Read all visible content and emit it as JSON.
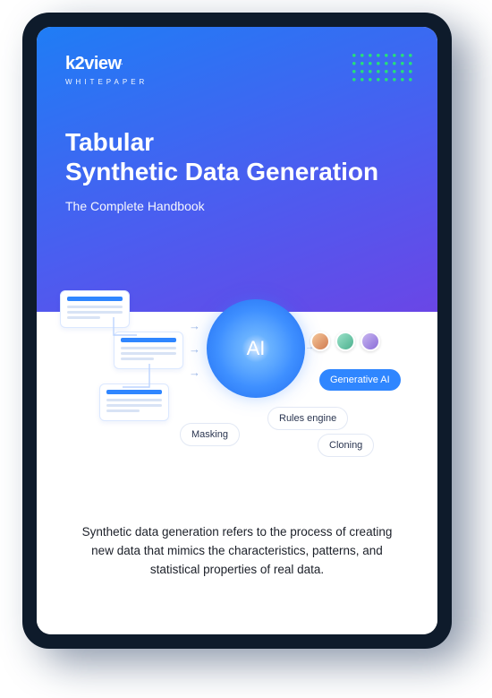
{
  "brand": {
    "logo_text": "k2view",
    "subline": "WHITEPAPER"
  },
  "dotgrid": {
    "rows": 4,
    "cols": 8,
    "color": "#26e07a",
    "dot_radius": 1.8,
    "spacing": 9
  },
  "title_line1": "Tabular",
  "title_line2": "Synthetic Data Generation",
  "subtitle": "The Complete Handbook",
  "gradient": {
    "start": "#1f7df5",
    "mid": "#4a5ef0",
    "end": "#6a46e6"
  },
  "diagram": {
    "ai_label": "AI",
    "orb_colors": {
      "inner": "#6fb6ff",
      "mid": "#3d8eff",
      "outer": "#1e6af0"
    },
    "accent": "#2f86ff",
    "card_border": "#dbe8ff",
    "line_color": "#d8e3f5",
    "arrow_color": "#9ab6e6",
    "pill_border": "#e2e8f4",
    "cards": [
      {
        "id": "c1",
        "title_w": 40
      },
      {
        "id": "c2",
        "title_w": 40
      },
      {
        "id": "c3",
        "title_w": 40
      }
    ],
    "pills": {
      "generative": "Generative AI",
      "rules": "Rules engine",
      "masking": "Masking",
      "cloning": "Cloning"
    },
    "avatars": 3
  },
  "summary": "Synthetic data generation refers to the process of creating new data that mimics the characteristics, patterns, and statistical properties of real data."
}
